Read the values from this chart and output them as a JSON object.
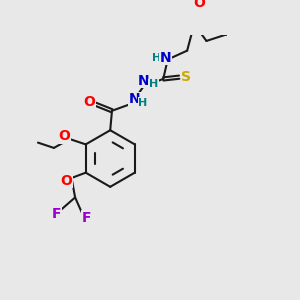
{
  "bg_color": "#e8e8e8",
  "bond_color": "#1a1a1a",
  "atom_colors": {
    "O": "#ff0000",
    "N": "#0000cc",
    "S": "#ccaa00",
    "F": "#9900cc",
    "H": "#008080",
    "C": "#1a1a1a"
  },
  "font_size_atom": 10,
  "font_size_small": 8,
  "figsize": [
    3.0,
    3.0
  ],
  "dpi": 100
}
